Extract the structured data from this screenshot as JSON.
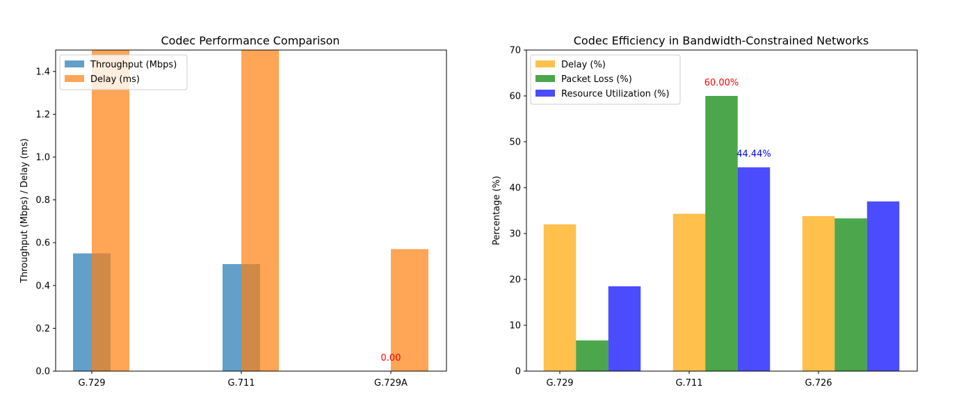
{
  "chart_data": [
    {
      "type": "bar",
      "title": "Codec Performance Comparison",
      "xlabel": "",
      "ylabel": "Throughput (Mbps) / Delay (ms)",
      "ylim": [
        0,
        1.5
      ],
      "yticks": [
        "0.0",
        "0.2",
        "0.4",
        "0.6",
        "0.8",
        "1.0",
        "1.2",
        "1.4"
      ],
      "categories": [
        "G.729",
        "G.711",
        "G.729A"
      ],
      "series": [
        {
          "name": "Throughput (Mbps)",
          "color": "#1f77b4",
          "values": [
            0.55,
            0.5,
            0.0
          ]
        },
        {
          "name": "Delay (ms)",
          "color": "#ff7f0e",
          "values": [
            1.5,
            1.5,
            0.57
          ]
        }
      ],
      "legend_position": "upper-left",
      "grid": false,
      "annotations": [
        {
          "text": "0.00",
          "category": "G.729A",
          "y": 0.0,
          "color": "#ff0000"
        }
      ]
    },
    {
      "type": "bar",
      "title": "Codec Efficiency in Bandwidth-Constrained Networks",
      "xlabel": "",
      "ylabel": "Percentage (%)",
      "ylim": [
        0,
        70
      ],
      "yticks": [
        "0",
        "10",
        "20",
        "30",
        "40",
        "50",
        "60",
        "70"
      ],
      "categories": [
        "G.729",
        "G.711",
        "G.726"
      ],
      "series": [
        {
          "name": "Delay (%)",
          "color": "#ffa500",
          "values": [
            32.0,
            34.3,
            33.8
          ]
        },
        {
          "name": "Packet Loss (%)",
          "color": "#008000",
          "values": [
            6.7,
            60.0,
            33.3
          ]
        },
        {
          "name": "Resource Utilization (%)",
          "color": "#0000ff",
          "values": [
            18.5,
            44.44,
            37.0
          ]
        }
      ],
      "legend_position": "upper-left",
      "grid": false,
      "annotations": [
        {
          "text": "60.00%",
          "category": "G.711",
          "series": 1,
          "y": 60.0,
          "color": "#ff0000"
        },
        {
          "text": "44.44%",
          "category": "G.711",
          "series": 2,
          "y": 44.44,
          "color": "#0000ff"
        }
      ]
    }
  ]
}
